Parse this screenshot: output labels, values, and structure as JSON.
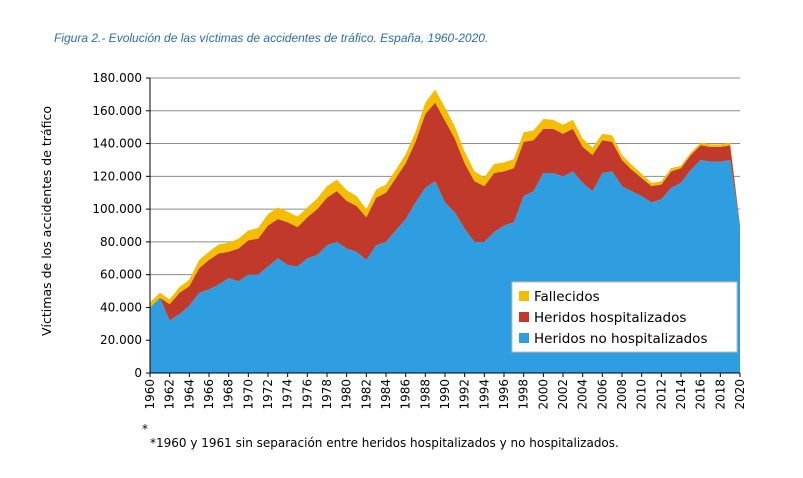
{
  "chart_data": {
    "type": "area",
    "stacked": true,
    "title": "Figura 2.- Evolución de las víctimas de accidentes de tráfico. España, 1960-2020.",
    "ylabel": "Víctimas de los accidentes de tráfico",
    "xlabel": "",
    "ylim": [
      0,
      180000
    ],
    "yticks": [
      "0",
      "20.000",
      "40.000",
      "60.000",
      "80.000",
      "100.000",
      "120.000",
      "140.000",
      "160.000",
      "180.000"
    ],
    "xtick_labels": [
      "1960",
      "1962",
      "1964",
      "1966",
      "1968",
      "1970",
      "1972",
      "1974",
      "1976",
      "1978",
      "1980",
      "1982",
      "1984",
      "1986",
      "1988",
      "1990",
      "1992",
      "1994",
      "1996",
      "1998",
      "2000",
      "2002",
      "2004",
      "2006",
      "2008",
      "2010",
      "2012",
      "2014",
      "2016",
      "2018",
      "2020"
    ],
    "x_marker": "*",
    "grid": "horizontal",
    "legend_position": "bottom-right",
    "footnote": "*1960 y 1961 sin separación entre heridos hospitalizados y no hospitalizados.",
    "x": [
      1960,
      1961,
      1962,
      1963,
      1964,
      1965,
      1966,
      1967,
      1968,
      1969,
      1970,
      1971,
      1972,
      1973,
      1974,
      1975,
      1976,
      1977,
      1978,
      1979,
      1980,
      1981,
      1982,
      1983,
      1984,
      1985,
      1986,
      1987,
      1988,
      1989,
      1990,
      1991,
      1992,
      1993,
      1994,
      1995,
      1996,
      1997,
      1998,
      1999,
      2000,
      2001,
      2002,
      2003,
      2004,
      2005,
      2006,
      2007,
      2008,
      2009,
      2010,
      2011,
      2012,
      2013,
      2014,
      2015,
      2016,
      2017,
      2018,
      2019,
      2020
    ],
    "series": [
      {
        "name": "Heridos no hospitalizados",
        "color": "#2e9ee0",
        "values": [
          40000,
          46000,
          32000,
          36000,
          41000,
          49000,
          51000,
          54000,
          58000,
          56000,
          60000,
          60000,
          65000,
          70000,
          66000,
          65000,
          70000,
          72000,
          78000,
          80000,
          76000,
          74000,
          69000,
          78000,
          80000,
          87000,
          94000,
          104000,
          113000,
          117000,
          104000,
          98000,
          88000,
          80000,
          80000,
          86000,
          90000,
          92000,
          108000,
          111000,
          122000,
          122000,
          120000,
          123000,
          116000,
          111000,
          122000,
          123000,
          114000,
          111000,
          108000,
          104000,
          106000,
          113000,
          116000,
          124000,
          130000,
          129000,
          129000,
          130000,
          90000
        ]
      },
      {
        "name": "Heridos hospitalizados",
        "color": "#c0392b",
        "values": [
          0,
          0,
          10000,
          13000,
          12000,
          15000,
          18000,
          19000,
          16000,
          20000,
          21000,
          22000,
          25000,
          24000,
          26000,
          24000,
          25000,
          28000,
          29000,
          31000,
          29000,
          28000,
          26000,
          29000,
          30000,
          32000,
          34000,
          37000,
          45000,
          48000,
          50000,
          45000,
          40000,
          37000,
          34000,
          36000,
          33000,
          33000,
          33000,
          31000,
          27000,
          27000,
          26000,
          26000,
          22000,
          22000,
          20000,
          18000,
          16000,
          13000,
          11000,
          10000,
          9000,
          10000,
          9000,
          9000,
          9000,
          9000,
          9000,
          9000,
          0
        ]
      },
      {
        "name": "Fallecidos",
        "color": "#f5bd00",
        "values": [
          3000,
          3000,
          3000,
          3500,
          4000,
          5000,
          5000,
          5500,
          5500,
          6000,
          6000,
          6500,
          7000,
          7000,
          6500,
          6500,
          6000,
          6500,
          7000,
          7000,
          6500,
          6000,
          5000,
          5000,
          5000,
          5000,
          5500,
          6000,
          7000,
          8000,
          8000,
          7500,
          7000,
          6000,
          5500,
          5500,
          5500,
          5500,
          6000,
          6000,
          6000,
          5500,
          5500,
          5500,
          5000,
          4500,
          4000,
          4000,
          3000,
          3000,
          2500,
          2000,
          2000,
          2000,
          1500,
          1500,
          1500,
          1500,
          1500,
          1500,
          1000
        ]
      }
    ]
  }
}
